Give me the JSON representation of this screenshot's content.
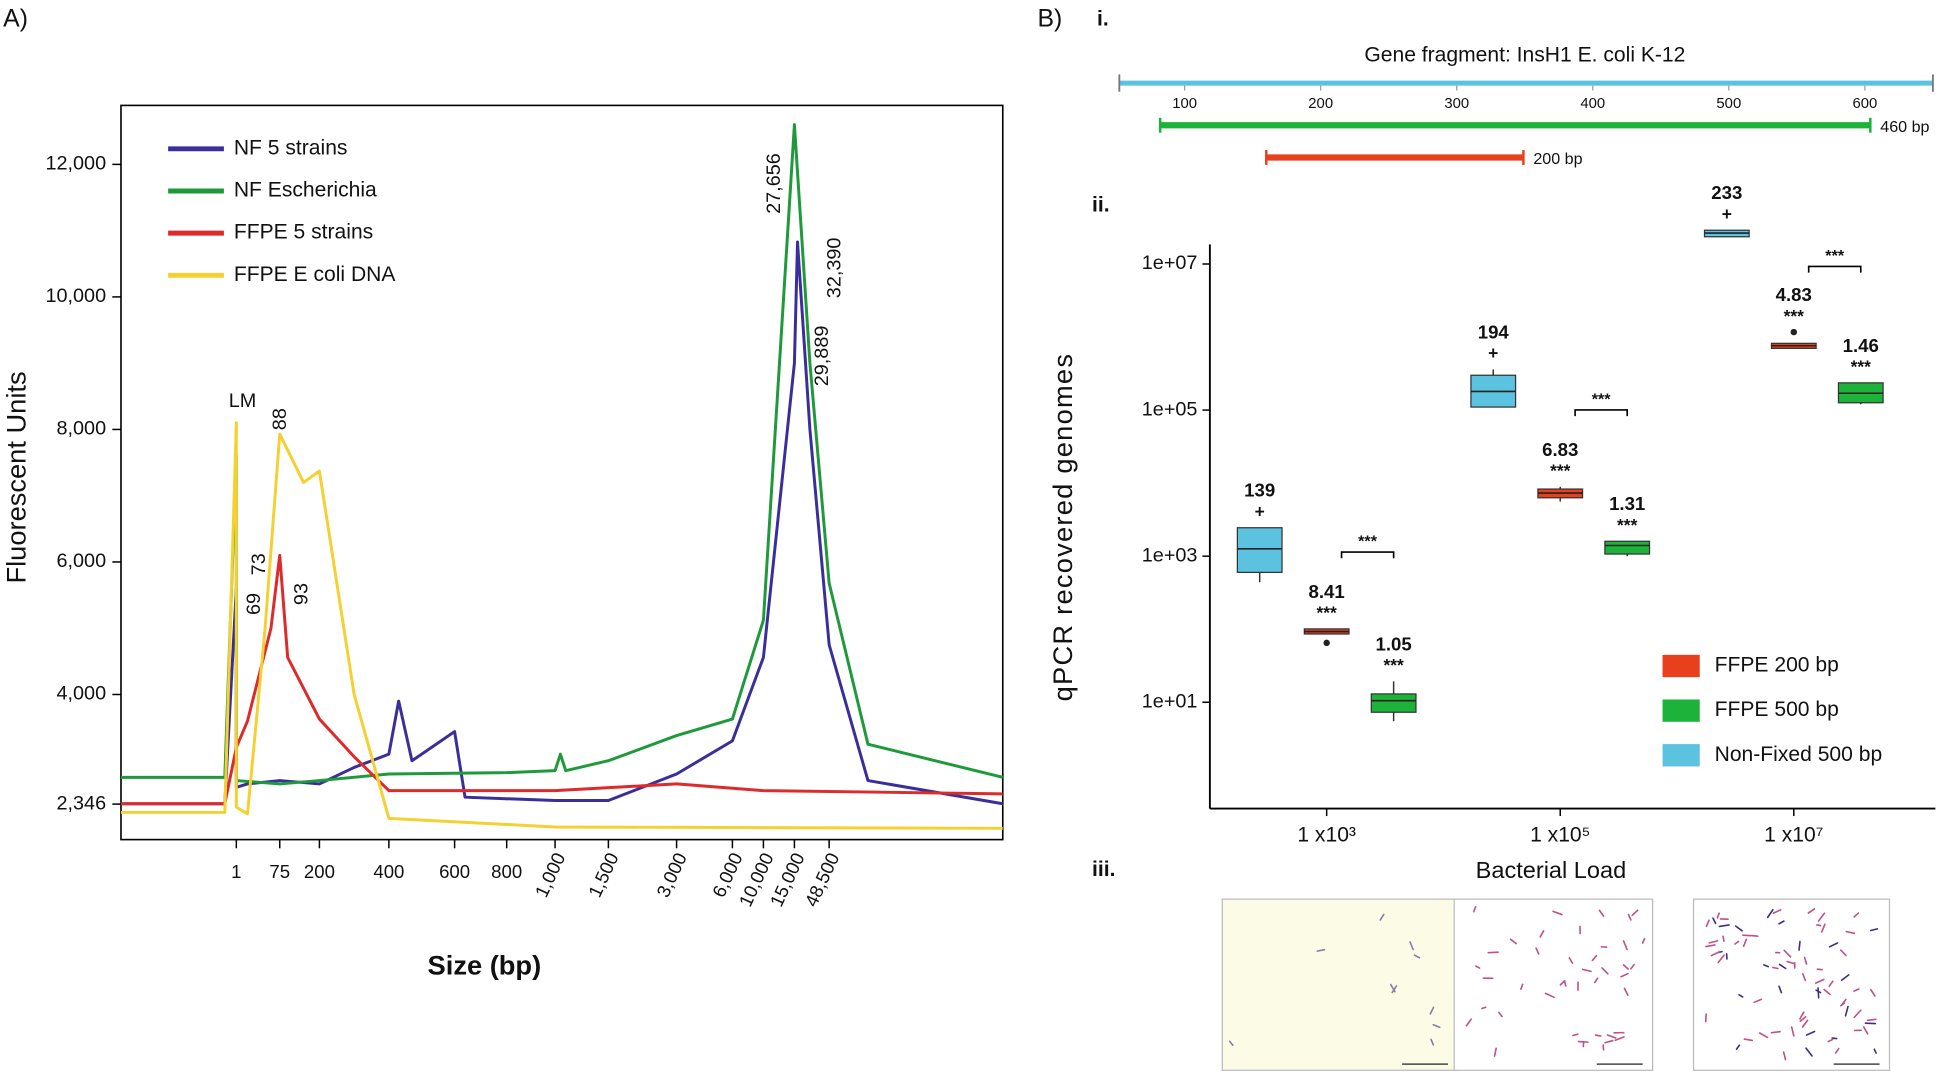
{
  "figure": {
    "labels": [
      "A)",
      "B)",
      "i.",
      "ii.",
      "iii."
    ]
  },
  "chart_data": [
    {
      "type": "line",
      "x_label": "Size (bp)",
      "y_label": "Fluorescent Units",
      "xlim": [
        0,
        100000
      ],
      "xticks": [
        1,
        75,
        200,
        400,
        600,
        800,
        {
          "value": 1000,
          "label": "1,000"
        },
        {
          "value": 1500,
          "label": "1,500"
        },
        {
          "value": 3000,
          "label": "3,000"
        },
        {
          "value": 6000,
          "label": "6,000"
        },
        {
          "value": 10000,
          "label": "10,000"
        },
        {
          "value": 15000,
          "label": "15,000"
        },
        {
          "value": 48500,
          "label": "48,500"
        }
      ],
      "ylim": [
        1810,
        12890
      ],
      "yticks": [
        {
          "value": 2346,
          "label": "2,346"
        },
        {
          "value": 4000,
          "label": "4,000"
        },
        {
          "value": 6000,
          "label": "6,000"
        },
        {
          "value": 8000,
          "label": "8,000"
        },
        {
          "value": 10000,
          "label": "10,000"
        },
        {
          "value": 12000,
          "label": "12,000"
        }
      ],
      "grid": false,
      "legend": "upper left",
      "series": [
        {
          "name": "NF 5 strains",
          "color": "#3a2f9a",
          "x": [
            0,
            0.9,
            1,
            1.1,
            20,
            75,
            200,
            300,
            400,
            430,
            470,
            500,
            600,
            640,
            1000,
            1500,
            3000,
            6000,
            10000,
            15000,
            18000,
            30000,
            48500,
            60000,
            100000
          ],
          "values": [
            2350,
            2350,
            5600,
            2600,
            2650,
            2700,
            2650,
            2900,
            3100,
            3900,
            3000,
            3100,
            3440,
            2450,
            2400,
            2400,
            2800,
            3300,
            4560,
            9000,
            10830,
            8000,
            4750,
            2700,
            2350
          ]
        },
        {
          "name": "NF Escherichia",
          "color": "#1f9a3a",
          "x": [
            0,
            0.9,
            1,
            1.1,
            75,
            200,
            400,
            800,
            1000,
            1050,
            1100,
            1500,
            3000,
            6000,
            10000,
            15000,
            30000,
            48500,
            60000,
            100000
          ],
          "values": [
            2750,
            2750,
            7600,
            2700,
            2650,
            2700,
            2800,
            2820,
            2850,
            3100,
            2850,
            3000,
            3380,
            3630,
            5120,
            12600,
            9000,
            5680,
            3250,
            2750
          ]
        },
        {
          "name": "FFPE 5 strains",
          "color": "#dd2a2a",
          "x": [
            0,
            0.9,
            1,
            20,
            60,
            75,
            100,
            200,
            300,
            400,
            1000,
            3000,
            10000,
            100000
          ],
          "values": [
            2350,
            2350,
            3200,
            3600,
            5000,
            6100,
            4560,
            3630,
            3060,
            2550,
            2550,
            2650,
            2550,
            2500
          ]
        },
        {
          "name": "FFPE E coli DNA",
          "color": "#f5d033",
          "x": [
            0,
            0.9,
            1,
            1.1,
            20,
            50,
            75,
            150,
            200,
            300,
            400,
            1000,
            100000
          ],
          "values": [
            2220,
            2220,
            8100,
            2300,
            2200,
            5000,
            7930,
            7200,
            7370,
            4000,
            2130,
            2000,
            1980
          ]
        }
      ],
      "annotations": [
        {
          "text": "LM",
          "color": "#111111"
        },
        {
          "text": "27,656",
          "color": "#1f9a3a"
        },
        {
          "text": "32,390",
          "color": "#3a2f9a"
        },
        {
          "text": "29,889",
          "color": "#1f9a3a"
        },
        {
          "text": "88",
          "color": "#f08c1a"
        },
        {
          "text": "73",
          "color": "#dd2a2a"
        },
        {
          "text": "69",
          "color": "#dd2a2a"
        },
        {
          "text": "93",
          "color": "#f08c1a"
        }
      ]
    },
    {
      "type": "interval",
      "title": "Gene fragment: InsH1 E. coli K-12",
      "axis_color": "#5bc3e0",
      "xlim": [
        52,
        650
      ],
      "xticks": [
        100,
        200,
        300,
        400,
        500,
        600
      ],
      "segments": [
        {
          "name": "460 bp",
          "color": "#1db33a",
          "start": 82,
          "end": 604
        },
        {
          "name": "200 bp",
          "color": "#e8401c",
          "start": 160,
          "end": 349
        }
      ]
    },
    {
      "type": "box",
      "y_label": "qPCR recovered genomes",
      "x_label": "Bacterial Load",
      "log_y": true,
      "legend": "lower right",
      "categories": [
        "1 x10³",
        "1 x10⁵",
        "1 x10⁷"
      ],
      "ylim": [
        0.35,
        18600000
      ],
      "yticks": [
        {
          "value": 10,
          "label": "1e+01"
        },
        {
          "value": 1000,
          "label": "1e+03"
        },
        {
          "value": 100000,
          "label": "1e+05"
        },
        {
          "value": 10000000,
          "label": "1e+07"
        }
      ],
      "series": [
        {
          "name": "FFPE 200 bp",
          "color": "#e8401c",
          "boxes": [
            {
              "low": 86,
              "q1": 86,
              "median": 93,
              "q3": 101,
              "high": 101,
              "outliers": [
                65
              ],
              "label": 8.41,
              "marker": "***"
            },
            {
              "low": 5600,
              "q1": 6300,
              "median": 7300,
              "q3": 8300,
              "high": 8900,
              "outliers": [],
              "label": 6.83,
              "marker": "***"
            },
            {
              "low": 700000,
              "q1": 700000,
              "median": 760000,
              "q3": 820000,
              "high": 820000,
              "outliers": [
                1170000
              ],
              "label": 4.83,
              "marker": "***"
            }
          ]
        },
        {
          "name": "FFPE 500 bp",
          "color": "#1db33a",
          "boxes": [
            {
              "low": 5.5,
              "q1": 7.3,
              "median": 10.5,
              "q3": 13,
              "high": 19.3,
              "outliers": [],
              "label": 1.05,
              "marker": "***"
            },
            {
              "low": 1000,
              "q1": 1070,
              "median": 1400,
              "q3": 1600,
              "high": 1600,
              "outliers": [],
              "label": 1.31,
              "marker": "***"
            },
            {
              "low": 120000,
              "q1": 126000,
              "median": 170000,
              "q3": 236000,
              "high": 236000,
              "outliers": [],
              "label": 1.46,
              "marker": "***"
            }
          ]
        },
        {
          "name": "Non-Fixed 500 bp",
          "color": "#5bc3e0",
          "boxes": [
            {
              "low": 440,
              "q1": 600,
              "median": 1260,
              "q3": 2450,
              "high": 2450,
              "outliers": [],
              "label": 139,
              "marker": "+"
            },
            {
              "low": 110000,
              "q1": 110000,
              "median": 180000,
              "q3": 300000,
              "high": 360000,
              "outliers": [],
              "label": 194,
              "marker": "+"
            },
            {
              "low": 23600000,
              "q1": 23600000,
              "median": 26500000,
              "q3": 29000000,
              "high": 29000000,
              "outliers": [],
              "label": 233,
              "marker": "+"
            }
          ]
        }
      ],
      "comparisons": [
        {
          "label": "***"
        },
        {
          "label": "***"
        },
        {
          "label": "***"
        }
      ]
    }
  ]
}
